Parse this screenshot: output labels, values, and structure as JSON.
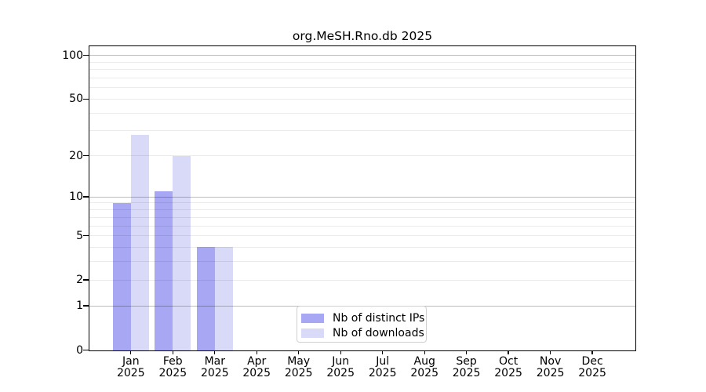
{
  "title": "org.MeSH.Rno.db 2025",
  "chart_data": {
    "type": "bar",
    "title": "org.MeSH.Rno.db 2025",
    "year": "2025",
    "months": [
      "Jan",
      "Feb",
      "Mar",
      "Apr",
      "May",
      "Jun",
      "Jul",
      "Aug",
      "Sep",
      "Oct",
      "Nov",
      "Dec"
    ],
    "categories": [
      "Jan 2025",
      "Feb 2025",
      "Mar 2025",
      "Apr 2025",
      "May 2025",
      "Jun 2025",
      "Jul 2025",
      "Aug 2025",
      "Sep 2025",
      "Oct 2025",
      "Nov 2025",
      "Dec 2025"
    ],
    "series": [
      {
        "name": "Nb of distinct IPs",
        "color": "#a7a7f3",
        "values": [
          9,
          11,
          4,
          0,
          0,
          0,
          0,
          0,
          0,
          0,
          0,
          0
        ]
      },
      {
        "name": "Nb of downloads",
        "color": "#d9d9f8",
        "values": [
          28,
          20,
          4,
          0,
          0,
          0,
          0,
          0,
          0,
          0,
          0,
          0
        ]
      }
    ],
    "yscale": "log1p",
    "ylim": [
      0,
      115
    ],
    "yticks": [
      0,
      1,
      2,
      5,
      10,
      20,
      50,
      100
    ],
    "major_gridlines": [
      1,
      10,
      100
    ],
    "minor_gridlines": [
      2,
      3,
      4,
      5,
      6,
      7,
      8,
      9,
      20,
      30,
      40,
      50,
      60,
      70,
      80,
      90
    ],
    "grid": "horizontal",
    "legend_position": "bottom-center",
    "colors": {
      "distinct_ips": "#a7a7f3",
      "downloads": "#d9d9f8",
      "frame": "#000000",
      "legend_border": "#d0d0d0"
    }
  }
}
